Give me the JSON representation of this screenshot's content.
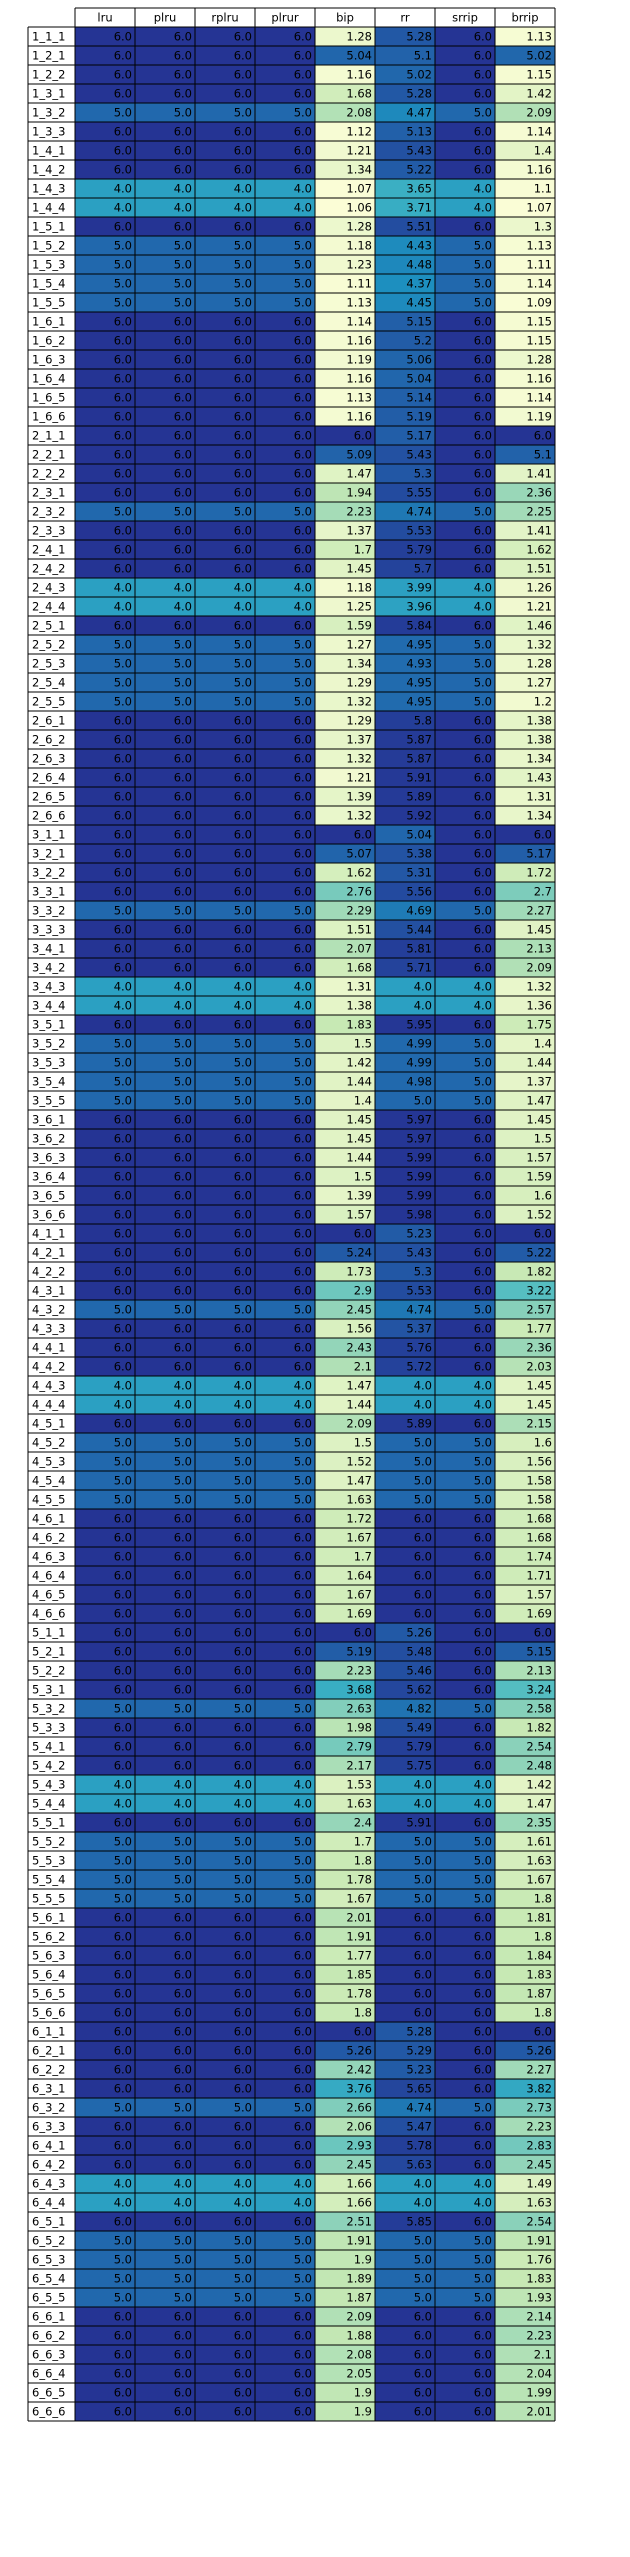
{
  "chart_data": {
    "type": "heatmap",
    "columns": [
      "lru",
      "plru",
      "rplru",
      "plrur",
      "bip",
      "rr",
      "srrip",
      "brrip"
    ],
    "rows": [
      [
        "1_1_1",
        6.0,
        6.0,
        6.0,
        6.0,
        1.28,
        5.28,
        6.0,
        1.13
      ],
      [
        "1_2_1",
        6.0,
        6.0,
        6.0,
        6.0,
        5.04,
        5.1,
        6.0,
        5.02
      ],
      [
        "1_2_2",
        6.0,
        6.0,
        6.0,
        6.0,
        1.16,
        5.02,
        6.0,
        1.15
      ],
      [
        "1_3_1",
        6.0,
        6.0,
        6.0,
        6.0,
        1.68,
        5.28,
        6.0,
        1.42
      ],
      [
        "1_3_2",
        5.0,
        5.0,
        5.0,
        5.0,
        2.08,
        4.47,
        5.0,
        2.09
      ],
      [
        "1_3_3",
        6.0,
        6.0,
        6.0,
        6.0,
        1.12,
        5.13,
        6.0,
        1.14
      ],
      [
        "1_4_1",
        6.0,
        6.0,
        6.0,
        6.0,
        1.21,
        5.43,
        6.0,
        1.4
      ],
      [
        "1_4_2",
        6.0,
        6.0,
        6.0,
        6.0,
        1.34,
        5.22,
        6.0,
        1.16
      ],
      [
        "1_4_3",
        4.0,
        4.0,
        4.0,
        4.0,
        1.07,
        3.65,
        4.0,
        1.1
      ],
      [
        "1_4_4",
        4.0,
        4.0,
        4.0,
        4.0,
        1.06,
        3.71,
        4.0,
        1.07
      ],
      [
        "1_5_1",
        6.0,
        6.0,
        6.0,
        6.0,
        1.28,
        5.51,
        6.0,
        1.3
      ],
      [
        "1_5_2",
        5.0,
        5.0,
        5.0,
        5.0,
        1.18,
        4.43,
        5.0,
        1.13
      ],
      [
        "1_5_3",
        5.0,
        5.0,
        5.0,
        5.0,
        1.23,
        4.48,
        5.0,
        1.11
      ],
      [
        "1_5_4",
        5.0,
        5.0,
        5.0,
        5.0,
        1.11,
        4.37,
        5.0,
        1.14
      ],
      [
        "1_5_5",
        5.0,
        5.0,
        5.0,
        5.0,
        1.13,
        4.45,
        5.0,
        1.09
      ],
      [
        "1_6_1",
        6.0,
        6.0,
        6.0,
        6.0,
        1.14,
        5.15,
        6.0,
        1.15
      ],
      [
        "1_6_2",
        6.0,
        6.0,
        6.0,
        6.0,
        1.16,
        5.2,
        6.0,
        1.15
      ],
      [
        "1_6_3",
        6.0,
        6.0,
        6.0,
        6.0,
        1.19,
        5.06,
        6.0,
        1.28
      ],
      [
        "1_6_4",
        6.0,
        6.0,
        6.0,
        6.0,
        1.16,
        5.04,
        6.0,
        1.16
      ],
      [
        "1_6_5",
        6.0,
        6.0,
        6.0,
        6.0,
        1.13,
        5.14,
        6.0,
        1.14
      ],
      [
        "1_6_6",
        6.0,
        6.0,
        6.0,
        6.0,
        1.16,
        5.19,
        6.0,
        1.19
      ],
      [
        "2_1_1",
        6.0,
        6.0,
        6.0,
        6.0,
        6.0,
        5.17,
        6.0,
        6.0
      ],
      [
        "2_2_1",
        6.0,
        6.0,
        6.0,
        6.0,
        5.09,
        5.43,
        6.0,
        5.1
      ],
      [
        "2_2_2",
        6.0,
        6.0,
        6.0,
        6.0,
        1.47,
        5.3,
        6.0,
        1.41
      ],
      [
        "2_3_1",
        6.0,
        6.0,
        6.0,
        6.0,
        1.94,
        5.55,
        6.0,
        2.36
      ],
      [
        "2_3_2",
        5.0,
        5.0,
        5.0,
        5.0,
        2.23,
        4.74,
        5.0,
        2.25
      ],
      [
        "2_3_3",
        6.0,
        6.0,
        6.0,
        6.0,
        1.37,
        5.53,
        6.0,
        1.41
      ],
      [
        "2_4_1",
        6.0,
        6.0,
        6.0,
        6.0,
        1.7,
        5.79,
        6.0,
        1.62
      ],
      [
        "2_4_2",
        6.0,
        6.0,
        6.0,
        6.0,
        1.45,
        5.7,
        6.0,
        1.51
      ],
      [
        "2_4_3",
        4.0,
        4.0,
        4.0,
        4.0,
        1.18,
        3.99,
        4.0,
        1.26
      ],
      [
        "2_4_4",
        4.0,
        4.0,
        4.0,
        4.0,
        1.25,
        3.96,
        4.0,
        1.21
      ],
      [
        "2_5_1",
        6.0,
        6.0,
        6.0,
        6.0,
        1.59,
        5.84,
        6.0,
        1.46
      ],
      [
        "2_5_2",
        5.0,
        5.0,
        5.0,
        5.0,
        1.27,
        4.95,
        5.0,
        1.32
      ],
      [
        "2_5_3",
        5.0,
        5.0,
        5.0,
        5.0,
        1.34,
        4.93,
        5.0,
        1.28
      ],
      [
        "2_5_4",
        5.0,
        5.0,
        5.0,
        5.0,
        1.29,
        4.95,
        5.0,
        1.27
      ],
      [
        "2_5_5",
        5.0,
        5.0,
        5.0,
        5.0,
        1.32,
        4.95,
        5.0,
        1.2
      ],
      [
        "2_6_1",
        6.0,
        6.0,
        6.0,
        6.0,
        1.29,
        5.8,
        6.0,
        1.38
      ],
      [
        "2_6_2",
        6.0,
        6.0,
        6.0,
        6.0,
        1.37,
        5.87,
        6.0,
        1.38
      ],
      [
        "2_6_3",
        6.0,
        6.0,
        6.0,
        6.0,
        1.32,
        5.87,
        6.0,
        1.34
      ],
      [
        "2_6_4",
        6.0,
        6.0,
        6.0,
        6.0,
        1.21,
        5.91,
        6.0,
        1.43
      ],
      [
        "2_6_5",
        6.0,
        6.0,
        6.0,
        6.0,
        1.39,
        5.89,
        6.0,
        1.31
      ],
      [
        "2_6_6",
        6.0,
        6.0,
        6.0,
        6.0,
        1.32,
        5.92,
        6.0,
        1.34
      ],
      [
        "3_1_1",
        6.0,
        6.0,
        6.0,
        6.0,
        6.0,
        5.04,
        6.0,
        6.0
      ],
      [
        "3_2_1",
        6.0,
        6.0,
        6.0,
        6.0,
        5.07,
        5.38,
        6.0,
        5.17
      ],
      [
        "3_2_2",
        6.0,
        6.0,
        6.0,
        6.0,
        1.62,
        5.31,
        6.0,
        1.72
      ],
      [
        "3_3_1",
        6.0,
        6.0,
        6.0,
        6.0,
        2.76,
        5.56,
        6.0,
        2.7
      ],
      [
        "3_3_2",
        5.0,
        5.0,
        5.0,
        5.0,
        2.29,
        4.69,
        5.0,
        2.27
      ],
      [
        "3_3_3",
        6.0,
        6.0,
        6.0,
        6.0,
        1.51,
        5.44,
        6.0,
        1.45
      ],
      [
        "3_4_1",
        6.0,
        6.0,
        6.0,
        6.0,
        2.07,
        5.81,
        6.0,
        2.13
      ],
      [
        "3_4_2",
        6.0,
        6.0,
        6.0,
        6.0,
        1.68,
        5.71,
        6.0,
        2.09
      ],
      [
        "3_4_3",
        4.0,
        4.0,
        4.0,
        4.0,
        1.31,
        4.0,
        4.0,
        1.32
      ],
      [
        "3_4_4",
        4.0,
        4.0,
        4.0,
        4.0,
        1.38,
        4.0,
        4.0,
        1.36
      ],
      [
        "3_5_1",
        6.0,
        6.0,
        6.0,
        6.0,
        1.83,
        5.95,
        6.0,
        1.75
      ],
      [
        "3_5_2",
        5.0,
        5.0,
        5.0,
        5.0,
        1.5,
        4.99,
        5.0,
        1.4
      ],
      [
        "3_5_3",
        5.0,
        5.0,
        5.0,
        5.0,
        1.42,
        4.99,
        5.0,
        1.44
      ],
      [
        "3_5_4",
        5.0,
        5.0,
        5.0,
        5.0,
        1.44,
        4.98,
        5.0,
        1.37
      ],
      [
        "3_5_5",
        5.0,
        5.0,
        5.0,
        5.0,
        1.4,
        5.0,
        5.0,
        1.47
      ],
      [
        "3_6_1",
        6.0,
        6.0,
        6.0,
        6.0,
        1.45,
        5.97,
        6.0,
        1.45
      ],
      [
        "3_6_2",
        6.0,
        6.0,
        6.0,
        6.0,
        1.45,
        5.97,
        6.0,
        1.5
      ],
      [
        "3_6_3",
        6.0,
        6.0,
        6.0,
        6.0,
        1.44,
        5.99,
        6.0,
        1.57
      ],
      [
        "3_6_4",
        6.0,
        6.0,
        6.0,
        6.0,
        1.5,
        5.99,
        6.0,
        1.59
      ],
      [
        "3_6_5",
        6.0,
        6.0,
        6.0,
        6.0,
        1.39,
        5.99,
        6.0,
        1.6
      ],
      [
        "3_6_6",
        6.0,
        6.0,
        6.0,
        6.0,
        1.57,
        5.98,
        6.0,
        1.52
      ],
      [
        "4_1_1",
        6.0,
        6.0,
        6.0,
        6.0,
        6.0,
        5.23,
        6.0,
        6.0
      ],
      [
        "4_2_1",
        6.0,
        6.0,
        6.0,
        6.0,
        5.24,
        5.43,
        6.0,
        5.22
      ],
      [
        "4_2_2",
        6.0,
        6.0,
        6.0,
        6.0,
        1.73,
        5.3,
        6.0,
        1.82
      ],
      [
        "4_3_1",
        6.0,
        6.0,
        6.0,
        6.0,
        2.9,
        5.53,
        6.0,
        3.22
      ],
      [
        "4_3_2",
        5.0,
        5.0,
        5.0,
        5.0,
        2.45,
        4.74,
        5.0,
        2.57
      ],
      [
        "4_3_3",
        6.0,
        6.0,
        6.0,
        6.0,
        1.56,
        5.37,
        6.0,
        1.77
      ],
      [
        "4_4_1",
        6.0,
        6.0,
        6.0,
        6.0,
        2.43,
        5.76,
        6.0,
        2.36
      ],
      [
        "4_4_2",
        6.0,
        6.0,
        6.0,
        6.0,
        2.1,
        5.72,
        6.0,
        2.03
      ],
      [
        "4_4_3",
        4.0,
        4.0,
        4.0,
        4.0,
        1.47,
        4.0,
        4.0,
        1.45
      ],
      [
        "4_4_4",
        4.0,
        4.0,
        4.0,
        4.0,
        1.44,
        4.0,
        4.0,
        1.45
      ],
      [
        "4_5_1",
        6.0,
        6.0,
        6.0,
        6.0,
        2.09,
        5.89,
        6.0,
        2.15
      ],
      [
        "4_5_2",
        5.0,
        5.0,
        5.0,
        5.0,
        1.5,
        5.0,
        5.0,
        1.6
      ],
      [
        "4_5_3",
        5.0,
        5.0,
        5.0,
        5.0,
        1.52,
        5.0,
        5.0,
        1.56
      ],
      [
        "4_5_4",
        5.0,
        5.0,
        5.0,
        5.0,
        1.47,
        5.0,
        5.0,
        1.58
      ],
      [
        "4_5_5",
        5.0,
        5.0,
        5.0,
        5.0,
        1.63,
        5.0,
        5.0,
        1.58
      ],
      [
        "4_6_1",
        6.0,
        6.0,
        6.0,
        6.0,
        1.72,
        6.0,
        6.0,
        1.68
      ],
      [
        "4_6_2",
        6.0,
        6.0,
        6.0,
        6.0,
        1.67,
        6.0,
        6.0,
        1.68
      ],
      [
        "4_6_3",
        6.0,
        6.0,
        6.0,
        6.0,
        1.7,
        6.0,
        6.0,
        1.74
      ],
      [
        "4_6_4",
        6.0,
        6.0,
        6.0,
        6.0,
        1.64,
        6.0,
        6.0,
        1.71
      ],
      [
        "4_6_5",
        6.0,
        6.0,
        6.0,
        6.0,
        1.67,
        6.0,
        6.0,
        1.57
      ],
      [
        "4_6_6",
        6.0,
        6.0,
        6.0,
        6.0,
        1.69,
        6.0,
        6.0,
        1.69
      ],
      [
        "5_1_1",
        6.0,
        6.0,
        6.0,
        6.0,
        6.0,
        5.26,
        6.0,
        6.0
      ],
      [
        "5_2_1",
        6.0,
        6.0,
        6.0,
        6.0,
        5.19,
        5.48,
        6.0,
        5.15
      ],
      [
        "5_2_2",
        6.0,
        6.0,
        6.0,
        6.0,
        2.23,
        5.46,
        6.0,
        2.13
      ],
      [
        "5_3_1",
        6.0,
        6.0,
        6.0,
        6.0,
        3.68,
        5.62,
        6.0,
        3.24
      ],
      [
        "5_3_2",
        5.0,
        5.0,
        5.0,
        5.0,
        2.63,
        4.82,
        5.0,
        2.58
      ],
      [
        "5_3_3",
        6.0,
        6.0,
        6.0,
        6.0,
        1.98,
        5.49,
        6.0,
        1.82
      ],
      [
        "5_4_1",
        6.0,
        6.0,
        6.0,
        6.0,
        2.79,
        5.79,
        6.0,
        2.54
      ],
      [
        "5_4_2",
        6.0,
        6.0,
        6.0,
        6.0,
        2.17,
        5.75,
        6.0,
        2.48
      ],
      [
        "5_4_3",
        4.0,
        4.0,
        4.0,
        4.0,
        1.53,
        4.0,
        4.0,
        1.42
      ],
      [
        "5_4_4",
        4.0,
        4.0,
        4.0,
        4.0,
        1.63,
        4.0,
        4.0,
        1.47
      ],
      [
        "5_5_1",
        6.0,
        6.0,
        6.0,
        6.0,
        2.4,
        5.91,
        6.0,
        2.35
      ],
      [
        "5_5_2",
        5.0,
        5.0,
        5.0,
        5.0,
        1.7,
        5.0,
        5.0,
        1.61
      ],
      [
        "5_5_3",
        5.0,
        5.0,
        5.0,
        5.0,
        1.8,
        5.0,
        5.0,
        1.63
      ],
      [
        "5_5_4",
        5.0,
        5.0,
        5.0,
        5.0,
        1.78,
        5.0,
        5.0,
        1.67
      ],
      [
        "5_5_5",
        5.0,
        5.0,
        5.0,
        5.0,
        1.67,
        5.0,
        5.0,
        1.8
      ],
      [
        "5_6_1",
        6.0,
        6.0,
        6.0,
        6.0,
        2.01,
        6.0,
        6.0,
        1.81
      ],
      [
        "5_6_2",
        6.0,
        6.0,
        6.0,
        6.0,
        1.91,
        6.0,
        6.0,
        1.8
      ],
      [
        "5_6_3",
        6.0,
        6.0,
        6.0,
        6.0,
        1.77,
        6.0,
        6.0,
        1.84
      ],
      [
        "5_6_4",
        6.0,
        6.0,
        6.0,
        6.0,
        1.85,
        6.0,
        6.0,
        1.83
      ],
      [
        "5_6_5",
        6.0,
        6.0,
        6.0,
        6.0,
        1.78,
        6.0,
        6.0,
        1.87
      ],
      [
        "5_6_6",
        6.0,
        6.0,
        6.0,
        6.0,
        1.8,
        6.0,
        6.0,
        1.8
      ],
      [
        "6_1_1",
        6.0,
        6.0,
        6.0,
        6.0,
        6.0,
        5.28,
        6.0,
        6.0
      ],
      [
        "6_2_1",
        6.0,
        6.0,
        6.0,
        6.0,
        5.26,
        5.29,
        6.0,
        5.26
      ],
      [
        "6_2_2",
        6.0,
        6.0,
        6.0,
        6.0,
        2.42,
        5.23,
        6.0,
        2.27
      ],
      [
        "6_3_1",
        6.0,
        6.0,
        6.0,
        6.0,
        3.76,
        5.65,
        6.0,
        3.82
      ],
      [
        "6_3_2",
        5.0,
        5.0,
        5.0,
        5.0,
        2.66,
        4.74,
        5.0,
        2.73
      ],
      [
        "6_3_3",
        6.0,
        6.0,
        6.0,
        6.0,
        2.06,
        5.47,
        6.0,
        2.23
      ],
      [
        "6_4_1",
        6.0,
        6.0,
        6.0,
        6.0,
        2.93,
        5.78,
        6.0,
        2.83
      ],
      [
        "6_4_2",
        6.0,
        6.0,
        6.0,
        6.0,
        2.45,
        5.63,
        6.0,
        2.45
      ],
      [
        "6_4_3",
        4.0,
        4.0,
        4.0,
        4.0,
        1.66,
        4.0,
        4.0,
        1.49
      ],
      [
        "6_4_4",
        4.0,
        4.0,
        4.0,
        4.0,
        1.66,
        4.0,
        4.0,
        1.63
      ],
      [
        "6_5_1",
        6.0,
        6.0,
        6.0,
        6.0,
        2.51,
        5.85,
        6.0,
        2.54
      ],
      [
        "6_5_2",
        5.0,
        5.0,
        5.0,
        5.0,
        1.91,
        5.0,
        5.0,
        1.91
      ],
      [
        "6_5_3",
        5.0,
        5.0,
        5.0,
        5.0,
        1.9,
        5.0,
        5.0,
        1.76
      ],
      [
        "6_5_4",
        5.0,
        5.0,
        5.0,
        5.0,
        1.89,
        5.0,
        5.0,
        1.83
      ],
      [
        "6_5_5",
        5.0,
        5.0,
        5.0,
        5.0,
        1.87,
        5.0,
        5.0,
        1.93
      ],
      [
        "6_6_1",
        6.0,
        6.0,
        6.0,
        6.0,
        2.09,
        6.0,
        6.0,
        2.14
      ],
      [
        "6_6_2",
        6.0,
        6.0,
        6.0,
        6.0,
        1.88,
        6.0,
        6.0,
        2.23
      ],
      [
        "6_6_3",
        6.0,
        6.0,
        6.0,
        6.0,
        2.08,
        6.0,
        6.0,
        2.1
      ],
      [
        "6_6_4",
        6.0,
        6.0,
        6.0,
        6.0,
        2.05,
        6.0,
        6.0,
        2.04
      ],
      [
        "6_6_5",
        6.0,
        6.0,
        6.0,
        6.0,
        1.9,
        6.0,
        6.0,
        1.99
      ],
      [
        "6_6_6",
        6.0,
        6.0,
        6.0,
        6.0,
        1.9,
        6.0,
        6.0,
        2.01
      ]
    ],
    "color_range": [
      1.0,
      6.0
    ],
    "colormap": [
      "#ffffd9",
      "#c7e9b4",
      "#7fcdbb",
      "#41b6c4",
      "#1d91c0",
      "#225ea8",
      "#253494"
    ],
    "grid": true,
    "legend": "none"
  }
}
